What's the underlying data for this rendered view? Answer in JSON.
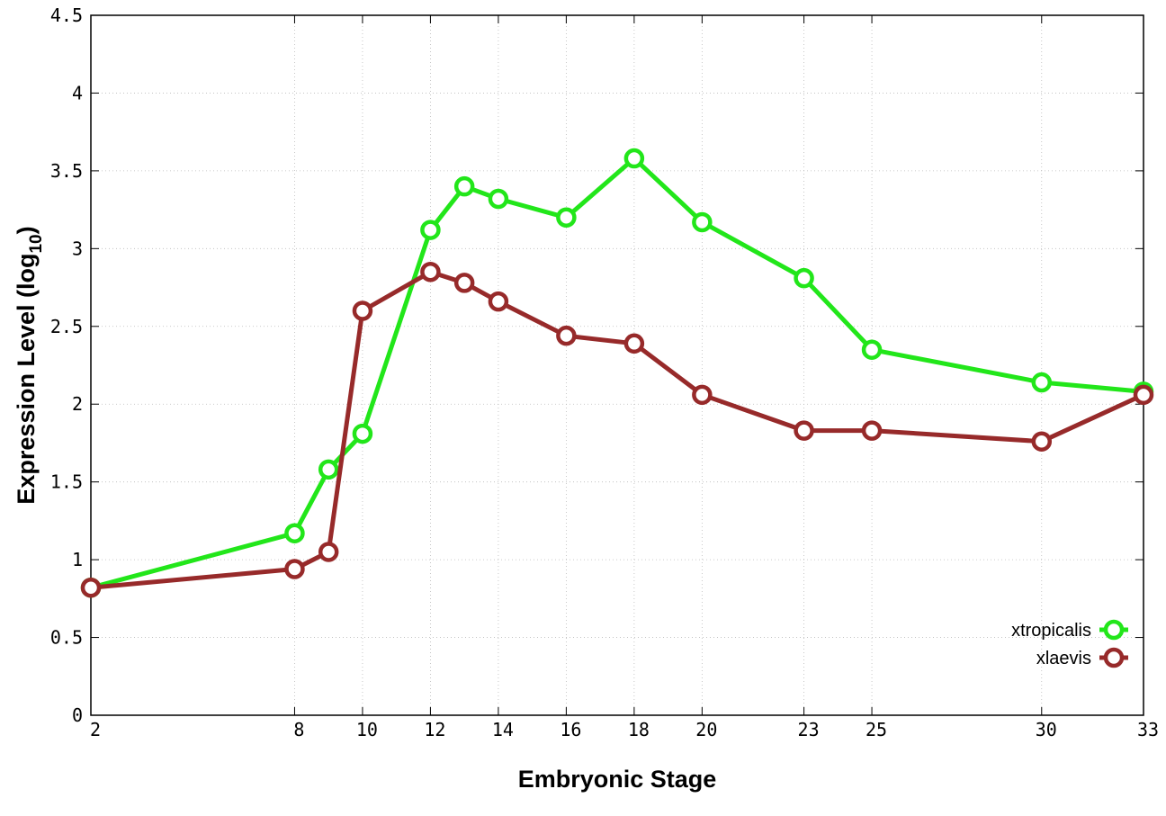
{
  "chart_data": {
    "type": "line",
    "xlabel": "Embryonic Stage",
    "ylabel": "Expression Level (log",
    "ylabel_subscript": "10",
    "ylabel_close": ")",
    "x": [
      2,
      8,
      9,
      10,
      12,
      13,
      14,
      16,
      18,
      20,
      23,
      25,
      30,
      33
    ],
    "x_ticks": [
      2,
      8,
      10,
      12,
      14,
      16,
      18,
      20,
      23,
      25,
      30,
      33
    ],
    "x_tick_labels": [
      "2",
      "8",
      "10",
      "12",
      "14",
      "16",
      "18",
      "20",
      "23",
      "25",
      "30",
      "33"
    ],
    "xlim": [
      2,
      33
    ],
    "y_ticks": [
      0,
      0.5,
      1,
      1.5,
      2,
      2.5,
      3,
      3.5,
      4,
      4.5
    ],
    "y_tick_labels": [
      "0",
      "0.5",
      "1",
      "1.5",
      "2",
      "2.5",
      "3",
      "3.5",
      "4",
      "4.5"
    ],
    "ylim": [
      0,
      4.5
    ],
    "grid": true,
    "legend_position": "bottom-right",
    "series": [
      {
        "name": "xtropicalis",
        "color": "#22e61a",
        "values": [
          0.82,
          1.17,
          1.58,
          1.81,
          3.12,
          3.4,
          3.32,
          3.2,
          3.58,
          3.17,
          2.81,
          2.35,
          2.14,
          2.08
        ]
      },
      {
        "name": "xlaevis",
        "color": "#972a2a",
        "values": [
          0.82,
          0.94,
          1.05,
          2.6,
          2.85,
          2.78,
          2.66,
          2.44,
          2.39,
          2.06,
          1.83,
          1.83,
          1.76,
          2.06
        ]
      }
    ]
  }
}
